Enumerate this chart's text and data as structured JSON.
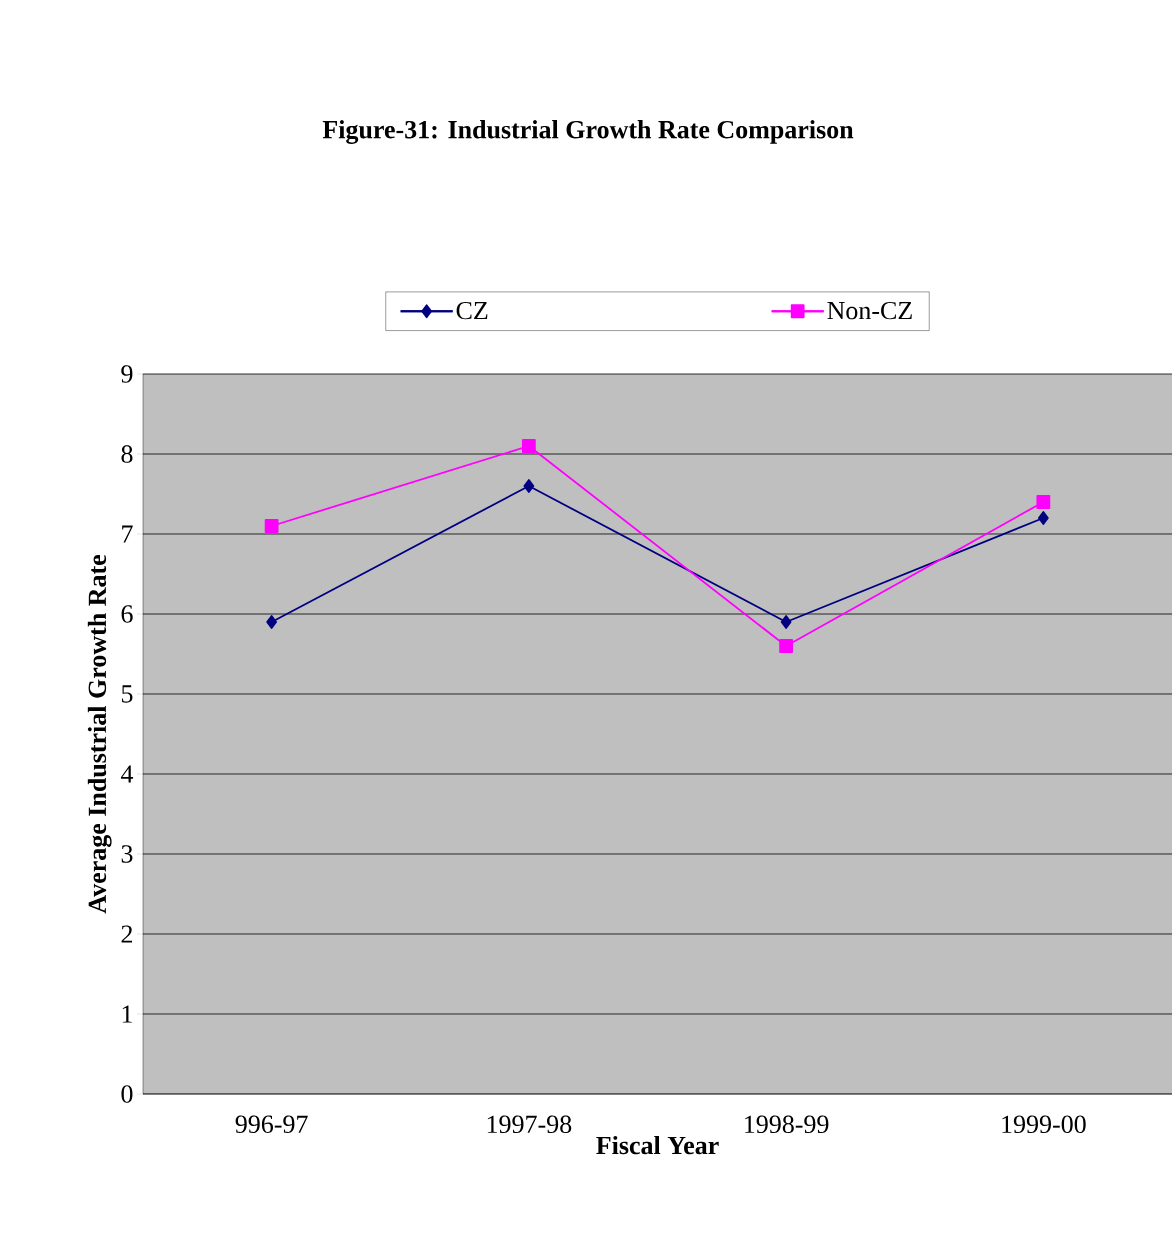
{
  "chart_data": {
    "type": "line",
    "title": "Figure-31: Industrial Growth Rate Comparison",
    "xlabel": "Fiscal Year",
    "ylabel": "Average Industrial Growth Rate",
    "categories": [
      "996-97",
      "1997-98",
      "1998-99",
      "1999-00"
    ],
    "series": [
      {
        "name": "CZ",
        "color": "#000080",
        "marker": "diamond",
        "values": [
          5.9,
          7.6,
          5.9,
          7.2
        ]
      },
      {
        "name": "Non-CZ",
        "color": "#ff00ff",
        "marker": "square",
        "values": [
          7.1,
          8.1,
          5.6,
          7.4
        ]
      }
    ],
    "ylim": [
      0,
      9
    ],
    "yticks": [
      0,
      1,
      2,
      3,
      4,
      5,
      6,
      7,
      8,
      9
    ],
    "grid": "y",
    "legend": "top",
    "line_style": "solid"
  }
}
